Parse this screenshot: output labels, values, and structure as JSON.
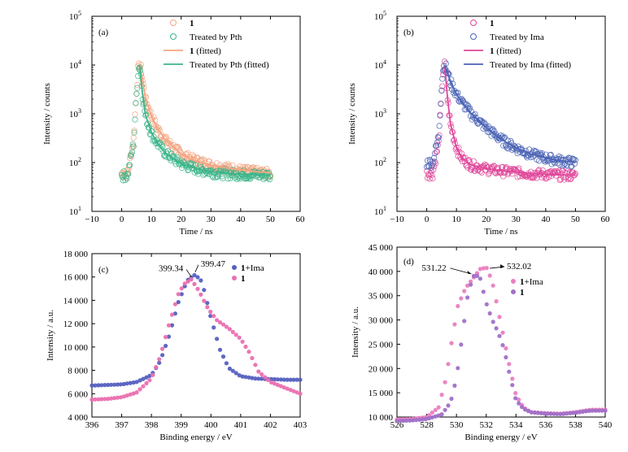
{
  "chart_data": [
    {
      "panel": "(a)",
      "type": "scatter",
      "xlabel": "Time / ns",
      "ylabel": "Intensity / counts",
      "xlim": [
        -10,
        60
      ],
      "xticks": [
        -10,
        0,
        10,
        20,
        30,
        40,
        50,
        60
      ],
      "ylim": [
        10,
        100000
      ],
      "yscale": "log",
      "yticks": [
        "10^1",
        "10^2",
        "10^3",
        "10^4",
        "10^5"
      ],
      "legend_position": "top-right",
      "series": [
        {
          "name": "1",
          "style": "hollow circles",
          "color": "#f4a582",
          "x": [
            0,
            2,
            4,
            5,
            5.5,
            6,
            6.5,
            7,
            8,
            10,
            12,
            15,
            20,
            25,
            30,
            35,
            40,
            45,
            50
          ],
          "y": [
            60,
            60,
            300,
            3000,
            8000,
            10000,
            8500,
            5000,
            2000,
            900,
            500,
            280,
            150,
            110,
            90,
            80,
            70,
            65,
            60
          ]
        },
        {
          "name": "Treated by Pth",
          "style": "hollow circles",
          "color": "#3bb58a",
          "x": [
            0,
            2,
            4,
            5,
            5.5,
            6,
            6.5,
            7,
            8,
            10,
            12,
            15,
            20,
            25,
            30,
            35,
            40,
            45,
            50
          ],
          "y": [
            55,
            55,
            250,
            2500,
            7000,
            10000,
            6500,
            2500,
            900,
            400,
            250,
            150,
            95,
            75,
            65,
            60,
            58,
            56,
            55
          ]
        },
        {
          "name": "1 (fitted)",
          "style": "line",
          "color": "#f4a582",
          "x": [
            6,
            7,
            8,
            10,
            12,
            15,
            20,
            25,
            30,
            35,
            40,
            45,
            50
          ],
          "y": [
            10000,
            5200,
            2100,
            900,
            500,
            280,
            150,
            105,
            88,
            78,
            70,
            65,
            62
          ]
        },
        {
          "name": "Treated by Pth (fitted)",
          "style": "line",
          "color": "#3bb58a",
          "x": [
            6,
            7,
            8,
            10,
            12,
            15,
            20,
            25,
            30,
            35,
            40,
            45,
            50
          ],
          "y": [
            10000,
            2600,
            950,
            420,
            250,
            150,
            95,
            75,
            65,
            60,
            58,
            56,
            55
          ]
        }
      ]
    },
    {
      "panel": "(b)",
      "type": "scatter",
      "xlabel": "Time / ns",
      "ylabel": "Intensity / counts",
      "xlim": [
        -10,
        60
      ],
      "xticks": [
        -10,
        0,
        10,
        20,
        30,
        40,
        50,
        60
      ],
      "ylim": [
        10,
        100000
      ],
      "yscale": "log",
      "yticks": [
        "10^1",
        "10^2",
        "10^3",
        "10^4",
        "10^5"
      ],
      "legend_position": "top-right",
      "series": [
        {
          "name": "1",
          "style": "hollow circles",
          "color": "#e0489a",
          "x": [
            0,
            2,
            4,
            5,
            5.5,
            6,
            6.5,
            7,
            8,
            10,
            12,
            15,
            20,
            25,
            30,
            35,
            40,
            45,
            50
          ],
          "y": [
            60,
            60,
            250,
            2500,
            7000,
            10000,
            6000,
            2000,
            600,
            200,
            120,
            90,
            75,
            68,
            64,
            60,
            58,
            56,
            55
          ]
        },
        {
          "name": "Treated by Ima",
          "style": "hollow circles",
          "color": "#4a63b5",
          "x": [
            0,
            2,
            4,
            5,
            5.5,
            6,
            6.5,
            7,
            8,
            10,
            12,
            15,
            20,
            25,
            30,
            35,
            40,
            45,
            50
          ],
          "y": [
            100,
            100,
            350,
            3500,
            8500,
            10000,
            9000,
            7000,
            4500,
            2500,
            1700,
            1000,
            520,
            300,
            200,
            150,
            125,
            110,
            100
          ]
        },
        {
          "name": "1 (fitted)",
          "style": "line",
          "color": "#e0489a",
          "x": [
            6,
            7,
            8,
            10,
            12,
            15,
            20,
            25,
            30,
            35,
            40,
            45,
            50
          ],
          "y": [
            10000,
            2100,
            620,
            200,
            120,
            90,
            75,
            68,
            64,
            60,
            58,
            56,
            55
          ]
        },
        {
          "name": "Treated by Ima (fitted)",
          "style": "line",
          "color": "#4a63b5",
          "x": [
            6,
            7,
            8,
            10,
            12,
            15,
            20,
            25,
            30,
            35,
            40,
            45,
            50
          ],
          "y": [
            10000,
            7000,
            4500,
            2500,
            1700,
            1000,
            520,
            300,
            200,
            150,
            125,
            110,
            100
          ]
        }
      ]
    },
    {
      "panel": "(c)",
      "type": "scatter",
      "xlabel": "Binding energy / eV",
      "ylabel": "Intensity / a.u.",
      "xlim": [
        396,
        403
      ],
      "xticks": [
        396,
        397,
        398,
        399,
        400,
        401,
        402,
        403
      ],
      "ylim": [
        4000,
        18000
      ],
      "yticks": [
        4000,
        6000,
        8000,
        10000,
        12000,
        14000,
        16000,
        18000
      ],
      "ytick_labels": [
        "4 000",
        "6 000",
        "8 000",
        "10 000",
        "12 000",
        "14 000",
        "16 000",
        "18 000"
      ],
      "legend_position": "top-right",
      "annotations": [
        "399.34",
        "399.47"
      ],
      "series": [
        {
          "name": "1+Ima",
          "style": "filled circles",
          "color": "#5560c0",
          "x": [
            396,
            396.5,
            397,
            397.5,
            398,
            398.3,
            398.6,
            398.9,
            399.2,
            399.47,
            399.7,
            400,
            400.3,
            400.6,
            401,
            401.5,
            402,
            402.5,
            403
          ],
          "y": [
            6700,
            6750,
            6800,
            7000,
            7600,
            8800,
            11000,
            13800,
            15700,
            16200,
            15600,
            12500,
            9800,
            8200,
            7500,
            7300,
            7250,
            7200,
            7200
          ]
        },
        {
          "name": "1",
          "style": "filled circles",
          "color": "#ea6fb0",
          "x": [
            396,
            396.5,
            397,
            397.5,
            398,
            398.3,
            398.6,
            398.9,
            399.1,
            399.34,
            399.6,
            399.9,
            400.2,
            400.6,
            401,
            401.3,
            401.6,
            402,
            402.5,
            403
          ],
          "y": [
            5500,
            5550,
            5700,
            6100,
            7300,
            9200,
            12000,
            14500,
            15400,
            15800,
            14800,
            13300,
            12300,
            11600,
            10700,
            9500,
            7900,
            7000,
            6500,
            6000
          ]
        }
      ]
    },
    {
      "panel": "(d)",
      "type": "scatter",
      "xlabel": "Binding energy / eV",
      "ylabel": "Intensity / a.u.",
      "xlim": [
        526,
        540
      ],
      "xticks": [
        526,
        528,
        530,
        532,
        534,
        536,
        538,
        540
      ],
      "ylim": [
        10000,
        45000
      ],
      "yticks": [
        10000,
        15000,
        20000,
        25000,
        30000,
        35000,
        40000,
        45000
      ],
      "ytick_labels": [
        "10 000",
        "15 000",
        "20 000",
        "25 000",
        "30 000",
        "35 000",
        "40 000",
        "45 000"
      ],
      "legend_position": "top-right",
      "annotations": [
        "531.22",
        "532.02"
      ],
      "series": [
        {
          "name": "1+Ima",
          "style": "filled circles",
          "color": "#ea7fc0",
          "x": [
            526,
            527,
            528,
            528.8,
            529.3,
            529.7,
            530.1,
            530.6,
            531.1,
            531.6,
            532.02,
            532.4,
            532.8,
            533.2,
            533.6,
            534,
            534.5,
            535,
            536,
            537,
            538,
            539,
            540
          ],
          "y": [
            9500,
            9600,
            10000,
            12000,
            18000,
            26000,
            33000,
            36500,
            38500,
            40500,
            40800,
            38000,
            32000,
            26000,
            20000,
            14500,
            12000,
            11000,
            10800,
            10700,
            11000,
            11500,
            11500
          ]
        },
        {
          "name": "1",
          "style": "filled circles",
          "color": "#a070c8",
          "x": [
            526,
            527,
            528,
            529,
            529.6,
            530,
            530.4,
            530.8,
            531.22,
            531.6,
            532,
            532.4,
            532.8,
            533.2,
            533.6,
            534,
            534.5,
            535,
            536,
            537,
            538,
            539,
            540
          ],
          "y": [
            9200,
            9300,
            9600,
            10500,
            13000,
            18000,
            27000,
            36000,
            39500,
            38500,
            33500,
            30000,
            27500,
            24000,
            18500,
            13500,
            11700,
            11000,
            10700,
            10600,
            10900,
            11300,
            11300
          ]
        }
      ]
    }
  ]
}
